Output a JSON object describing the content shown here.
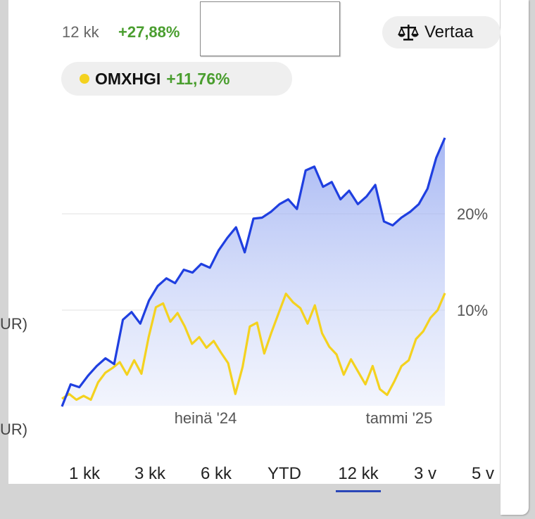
{
  "header": {
    "period_label": "12 kk",
    "period_change": "+27,88%",
    "compare_label": "Vertaa"
  },
  "index_chip": {
    "name": "OMXHGI",
    "change": "+11,76%"
  },
  "cut_off_labels": [
    "UR)",
    "UR)"
  ],
  "range_tabs": [
    {
      "label": "1 kk",
      "active": false
    },
    {
      "label": "3 kk",
      "active": false
    },
    {
      "label": "6 kk",
      "active": false
    },
    {
      "label": "YTD",
      "active": false
    },
    {
      "label": "12 kk",
      "active": true
    },
    {
      "label": "3 v",
      "active": false
    },
    {
      "label": "5 v",
      "active": false
    }
  ],
  "colors": {
    "stock_line": "#1f3fe0",
    "index_line": "#f4d21f",
    "positive_change": "#4a9e2f",
    "active_tab_underline": "#2a46b8"
  },
  "chart_data": {
    "type": "line",
    "x_tick_labels": [
      "heinä '24",
      "tammi '25"
    ],
    "y_tick_labels": [
      "10%",
      "20%"
    ],
    "y_ticks": [
      10,
      20
    ],
    "ylim": [
      -0.5,
      28
    ],
    "grid": true,
    "series": [
      {
        "color": "#1f3fe0",
        "area_fill": true,
        "values": [
          0.0,
          2.3,
          2.0,
          3.2,
          4.2,
          5.0,
          4.4,
          9.0,
          9.8,
          8.6,
          11.0,
          12.5,
          13.3,
          12.8,
          14.2,
          13.9,
          14.8,
          14.4,
          16.2,
          17.5,
          18.6,
          16.0,
          19.5,
          19.6,
          20.2,
          21.0,
          21.5,
          20.5,
          24.5,
          24.9,
          22.8,
          23.3,
          21.5,
          22.4,
          21.0,
          21.8,
          23.0,
          19.2,
          18.8,
          19.6,
          20.2,
          21.0,
          22.6,
          25.8,
          27.88
        ]
      },
      {
        "color": "#f4d21f",
        "area_fill": false,
        "values": [
          0.8,
          1.3,
          0.7,
          1.1,
          0.7,
          2.5,
          3.5,
          4.0,
          4.6,
          3.3,
          4.8,
          3.4,
          7.2,
          10.3,
          10.7,
          8.8,
          9.7,
          8.3,
          6.5,
          7.2,
          6.1,
          6.8,
          5.6,
          4.5,
          1.3,
          4.1,
          8.3,
          8.7,
          5.5,
          7.7,
          9.7,
          11.7,
          10.8,
          10.2,
          8.6,
          10.5,
          7.6,
          6.2,
          5.4,
          3.3,
          4.9,
          3.6,
          2.3,
          4.2,
          1.8,
          1.2,
          2.6,
          4.2,
          4.8,
          7.0,
          7.8,
          9.2,
          10.0,
          11.76
        ]
      }
    ]
  }
}
